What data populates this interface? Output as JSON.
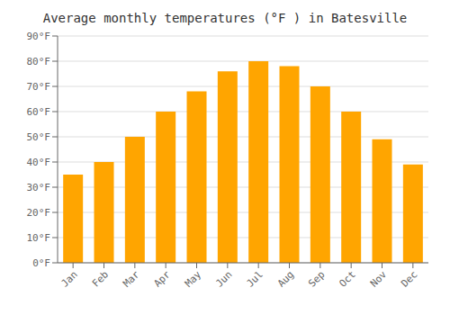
{
  "chart_data": {
    "type": "bar",
    "title": "Average monthly temperatures (°F ) in Batesville",
    "categories": [
      "Jan",
      "Feb",
      "Mar",
      "Apr",
      "May",
      "Jun",
      "Jul",
      "Aug",
      "Sep",
      "Oct",
      "Nov",
      "Dec"
    ],
    "values": [
      35,
      40,
      50,
      60,
      68,
      76,
      80,
      78,
      70,
      60,
      49,
      39
    ],
    "color": "#FFA500",
    "ylim": [
      0,
      90
    ],
    "yticks": [
      {
        "value": 0,
        "label": "0°F"
      },
      {
        "value": 10,
        "label": "10°F"
      },
      {
        "value": 20,
        "label": "20°F"
      },
      {
        "value": 30,
        "label": "30°F"
      },
      {
        "value": 40,
        "label": "40°F"
      },
      {
        "value": 50,
        "label": "50°F"
      },
      {
        "value": 60,
        "label": "60°F"
      },
      {
        "value": 70,
        "label": "70°F"
      },
      {
        "value": 80,
        "label": "80°F"
      },
      {
        "value": 90,
        "label": "90°F"
      }
    ],
    "grid": true
  }
}
